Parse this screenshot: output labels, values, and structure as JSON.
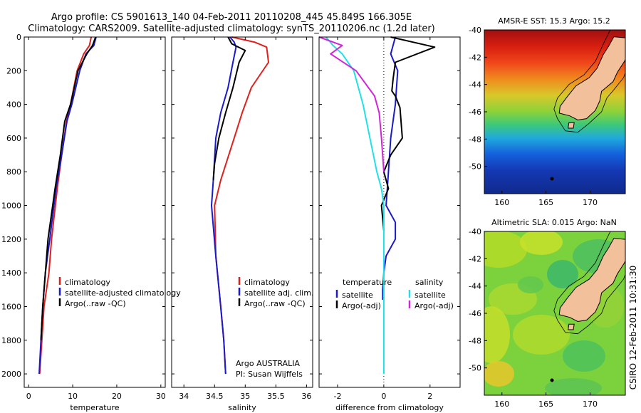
{
  "title_line1": "Argo profile: CS 5901613_140 04-Feb-2011 20110208_445 45.849S 166.305E",
  "title_line2": "Climatology: CARS2009. Satellite-adjusted climatology: synTS_20110206.nc (1.2d later)",
  "credit_rotated": "CSIRO 12-Feb-2011 10:31:30",
  "colors": {
    "red": "#e0201c",
    "blue": "#1a1acc",
    "black": "#000000",
    "cyan": "#22e0e8",
    "magenta": "#d025d8",
    "land": "#f3c09c"
  },
  "chart_data": [
    {
      "type": "line",
      "xlabel": "temperature",
      "xlim": [
        -1,
        31
      ],
      "ylim": [
        0,
        2080
      ],
      "xticks": [
        0,
        10,
        20,
        30
      ],
      "yticks": [
        0,
        200,
        400,
        600,
        800,
        1000,
        1200,
        1400,
        1600,
        1800,
        2000
      ],
      "legend": [
        "climatology",
        "satellite-adjusted climatology",
        "Argo(..raw -QC)"
      ],
      "series": [
        {
          "name": "climatology",
          "color": "#e0201c",
          "x": [
            14.2,
            13.8,
            12.5,
            11.0,
            9.5,
            8.6,
            7.5,
            6.5,
            5.2,
            4.6,
            3.5,
            3.0,
            2.5
          ],
          "y": [
            0,
            50,
            100,
            200,
            400,
            500,
            700,
            900,
            1200,
            1400,
            1600,
            1800,
            2000
          ]
        },
        {
          "name": "satellite-adjusted climatology",
          "color": "#1a1acc",
          "x": [
            15.3,
            14.8,
            13.0,
            11.6,
            9.8,
            8.7,
            7.5,
            6.2,
            4.8,
            3.8,
            3.2,
            2.8,
            2.4
          ],
          "y": [
            0,
            50,
            100,
            200,
            400,
            500,
            700,
            900,
            1200,
            1400,
            1600,
            1800,
            2000
          ]
        },
        {
          "name": "Argo(..raw -QC)",
          "color": "#000000",
          "x": [
            15.2,
            14.5,
            13.2,
            11.2,
            9.5,
            8.2,
            7.2,
            6.0,
            4.4,
            3.8,
            3.2,
            2.8
          ],
          "y": [
            0,
            50,
            100,
            200,
            400,
            500,
            700,
            900,
            1200,
            1400,
            1600,
            1800
          ]
        }
      ]
    },
    {
      "type": "line",
      "xlabel": "salinity",
      "xlim": [
        33.8,
        36.1
      ],
      "ylim": [
        0,
        2080
      ],
      "xticks": [
        34,
        34.5,
        35,
        35.5,
        36
      ],
      "yticks": [
        0,
        200,
        400,
        600,
        800,
        1000,
        1200,
        1400,
        1600,
        1800,
        2000
      ],
      "legend": [
        "climatology",
        "satellite adj. clim.",
        "Argo(..raw -QC)"
      ],
      "annotation": [
        "Argo AUSTRALIA",
        "PI: Susan Wijffels"
      ],
      "series": [
        {
          "name": "climatology",
          "color": "#e0201c",
          "x": [
            34.78,
            35.15,
            35.35,
            35.38,
            35.1,
            34.95,
            34.82,
            34.6,
            34.5,
            34.52,
            34.6,
            34.65,
            34.68
          ],
          "y": [
            0,
            30,
            60,
            150,
            300,
            450,
            600,
            850,
            1000,
            1300,
            1600,
            1800,
            2000
          ]
        },
        {
          "name": "satellite adj. clim.",
          "color": "#1a1acc",
          "x": [
            34.75,
            34.82,
            34.85,
            34.8,
            34.72,
            34.6,
            34.52,
            34.48,
            34.45,
            34.52,
            34.6,
            34.65,
            34.68
          ],
          "y": [
            0,
            30,
            60,
            150,
            300,
            450,
            600,
            850,
            1000,
            1300,
            1600,
            1800,
            2000
          ]
        },
        {
          "name": "Argo(..raw -QC)",
          "color": "#000000",
          "x": [
            34.72,
            34.78,
            35.0,
            34.9,
            34.8,
            34.68,
            34.57,
            34.5,
            34.48
          ],
          "y": [
            0,
            40,
            80,
            150,
            300,
            450,
            600,
            750,
            850
          ]
        }
      ]
    },
    {
      "type": "line",
      "xlabel": "difference from climatology",
      "xlim": [
        -2.8,
        3.3
      ],
      "ylim": [
        0,
        2080
      ],
      "xticks": [
        -2,
        0,
        2
      ],
      "yticks": [
        0,
        200,
        400,
        600,
        800,
        1000,
        1200,
        1400,
        1600,
        1800,
        2000
      ],
      "legend": [
        "temperature",
        "satellite",
        "Argo(-adj)",
        "salinity",
        "satellite",
        "Argo(-adj)"
      ],
      "series": [
        {
          "name": "temperature satellite",
          "color": "#1a1acc",
          "x": [
            0.5,
            0.4,
            0.3,
            0.6,
            0.5,
            0.3,
            0.2,
            0.15,
            0.1,
            0.5,
            0.5,
            0.1,
            0.0,
            -0.05,
            -0.05
          ],
          "y": [
            0,
            50,
            100,
            200,
            400,
            600,
            800,
            900,
            1000,
            1100,
            1200,
            1300,
            1400,
            1500,
            1560
          ]
        },
        {
          "name": "temperature Argo(-adj)",
          "color": "#000000",
          "x": [
            0.3,
            2.2,
            0.5,
            0.4,
            0.35,
            0.5,
            0.7,
            0.8,
            0.3,
            0.0,
            0.2,
            -0.1,
            0.0
          ],
          "y": [
            0,
            60,
            150,
            250,
            320,
            350,
            420,
            600,
            700,
            800,
            900,
            1000,
            1150
          ]
        },
        {
          "name": "salinity satellite",
          "color": "#22e0e8",
          "x": [
            -2.5,
            -2.2,
            -1.8,
            -1.3,
            -0.9,
            -0.6,
            -0.3,
            -0.1,
            0.0,
            0.0,
            0.0
          ],
          "y": [
            0,
            50,
            100,
            200,
            400,
            600,
            800,
            900,
            1000,
            1500,
            2000
          ]
        },
        {
          "name": "salinity Argo(-adj)",
          "color": "#d025d8",
          "x": [
            -2.8,
            -1.8,
            -2.3,
            -1.2,
            -0.4,
            -0.2,
            -0.1,
            0.0
          ],
          "y": [
            0,
            50,
            100,
            200,
            350,
            450,
            600,
            800
          ]
        }
      ]
    },
    {
      "type": "heatmap",
      "title": "AMSR-E SST: 15.3 Argo: 15.2",
      "xlim": [
        158,
        174
      ],
      "ylim": [
        -52,
        -40
      ],
      "xticks": [
        160,
        165,
        170
      ],
      "yticks": [
        -40,
        -42,
        -44,
        -46,
        -48,
        -50
      ]
    },
    {
      "type": "heatmap",
      "title": "Altimetric SLA: 0.015 Argo: NaN",
      "xlim": [
        158,
        174
      ],
      "ylim": [
        -52,
        -40
      ],
      "xticks": [
        160,
        165,
        170
      ],
      "yticks": [
        -40,
        -42,
        -44,
        -46,
        -48,
        -50
      ]
    }
  ]
}
